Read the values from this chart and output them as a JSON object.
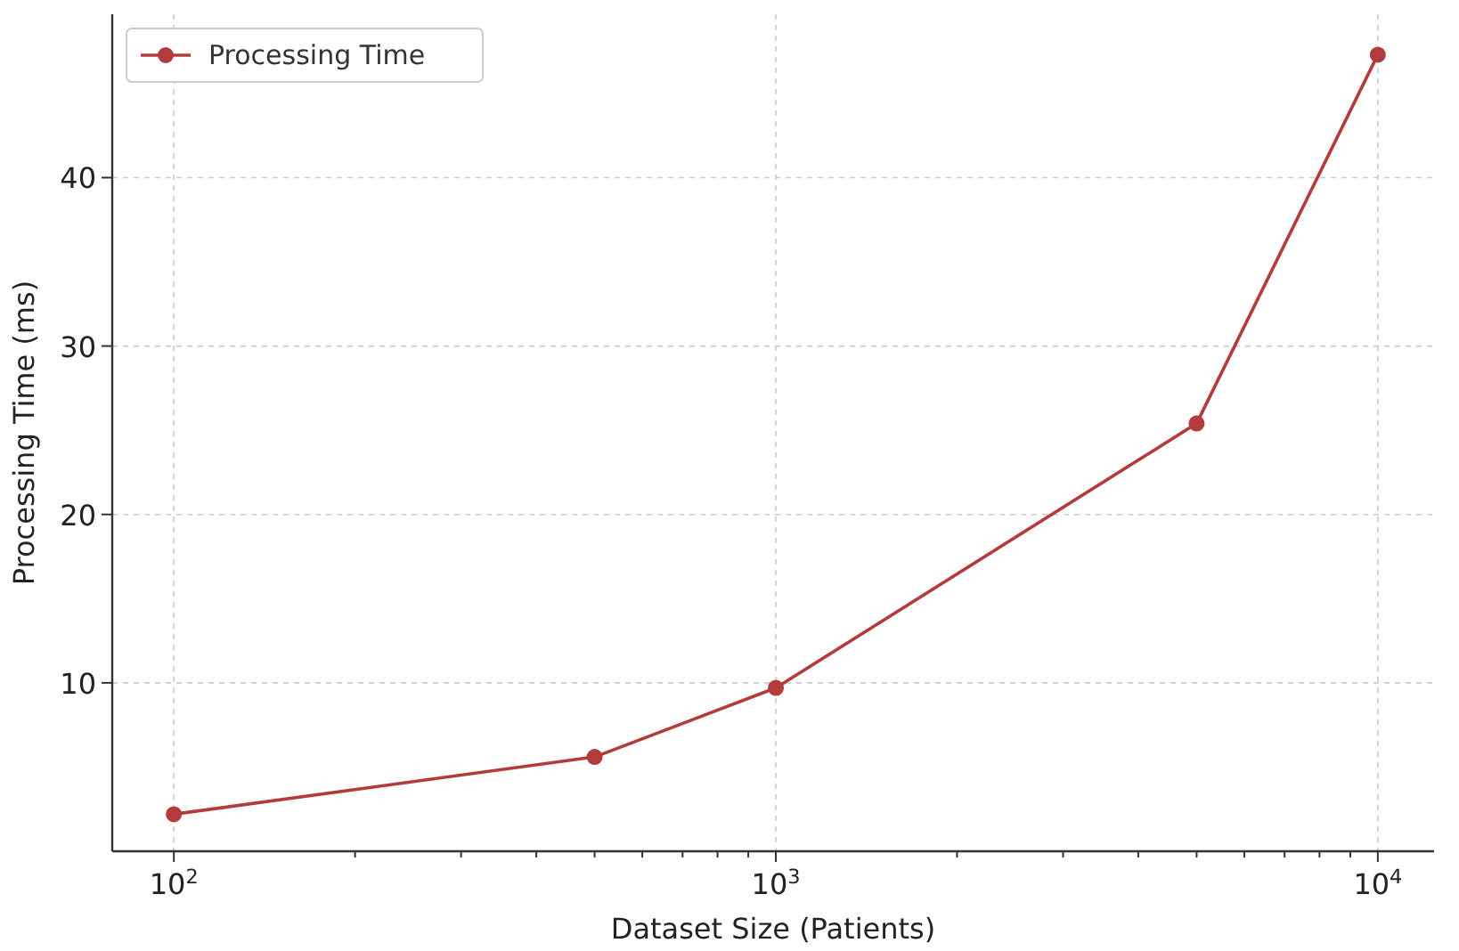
{
  "chart_data": {
    "type": "line",
    "xlabel": "Dataset Size (Patients)",
    "ylabel": "Processing Time (ms)",
    "log": "x",
    "x": [
      100,
      500,
      1000,
      5000,
      10000
    ],
    "series": [
      {
        "name": "Processing Time",
        "color": "#b43b3b",
        "values": [
          2.2,
          5.6,
          9.7,
          25.4,
          47.3
        ]
      }
    ],
    "xlim": [
      79,
      12400
    ],
    "ylim": [
      0,
      49.7
    ],
    "xticks": [
      {
        "value": 100,
        "label": "10$^{2}$"
      },
      {
        "value": 200,
        "label": null
      },
      {
        "value": 300,
        "label": null
      },
      {
        "value": 400,
        "label": null
      },
      {
        "value": 500,
        "label": null
      },
      {
        "value": 600,
        "label": null
      },
      {
        "value": 700,
        "label": null
      },
      {
        "value": 800,
        "label": null
      },
      {
        "value": 900,
        "label": null
      },
      {
        "value": 1000,
        "label": "10$^{3}$"
      },
      {
        "value": 2000,
        "label": null
      },
      {
        "value": 3000,
        "label": null
      },
      {
        "value": 4000,
        "label": null
      },
      {
        "value": 5000,
        "label": null
      },
      {
        "value": 6000,
        "label": null
      },
      {
        "value": 7000,
        "label": null
      },
      {
        "value": 8000,
        "label": null
      },
      {
        "value": 9000,
        "label": null
      },
      {
        "value": 10000,
        "label": "10$^{4}$"
      }
    ],
    "yticks": [
      10,
      20,
      30,
      40
    ],
    "grid": true,
    "legend": "top left",
    "marker": "circle",
    "line_style": "solid"
  }
}
